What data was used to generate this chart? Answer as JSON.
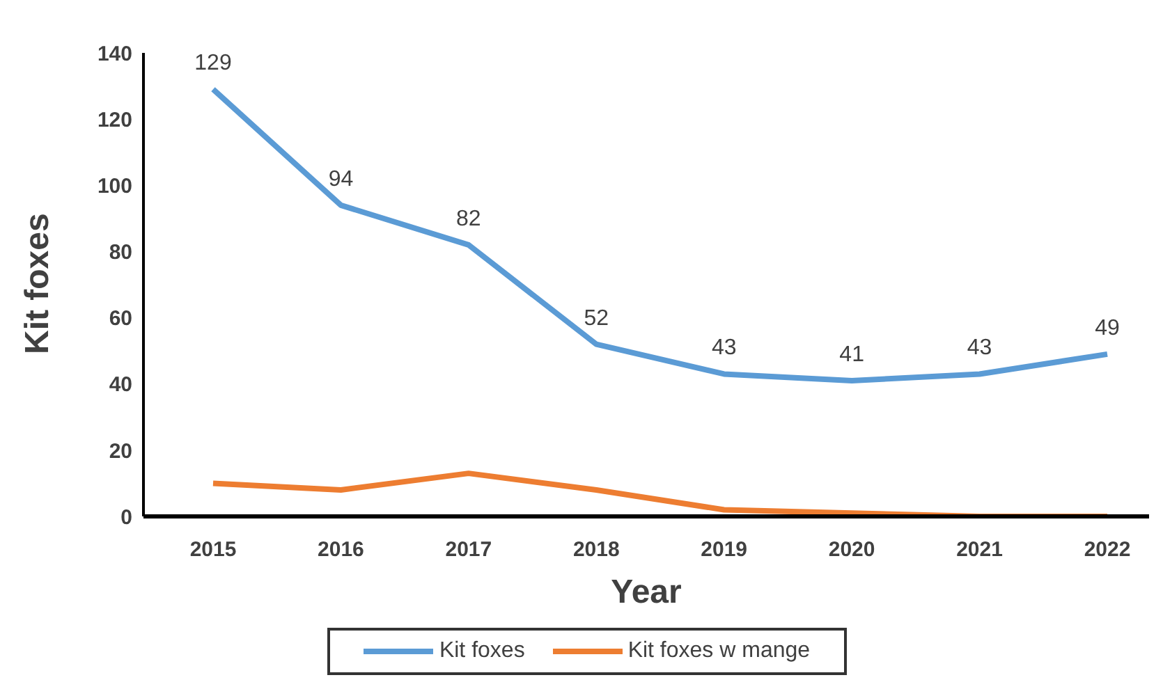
{
  "chart_data": {
    "type": "line",
    "xlabel": "Year",
    "ylabel": "Kit foxes",
    "categories": [
      "2015",
      "2016",
      "2017",
      "2018",
      "2019",
      "2020",
      "2021",
      "2022"
    ],
    "series": [
      {
        "name": "Kit foxes",
        "color": "#5b9bd5",
        "values": [
          129,
          94,
          82,
          52,
          43,
          41,
          43,
          49
        ],
        "value_labels": [
          "129",
          "94",
          "82",
          "52",
          "43",
          "41",
          "43",
          "49"
        ]
      },
      {
        "name": "Kit foxes w mange",
        "color": "#ed7d31",
        "values": [
          10,
          8,
          13,
          8,
          2,
          1,
          0,
          0
        ]
      }
    ],
    "ylim": [
      0,
      140
    ],
    "yticks": [
      0,
      20,
      40,
      60,
      80,
      100,
      120,
      140
    ],
    "legend": "bottom",
    "marker": "none",
    "line_style": "solid"
  }
}
